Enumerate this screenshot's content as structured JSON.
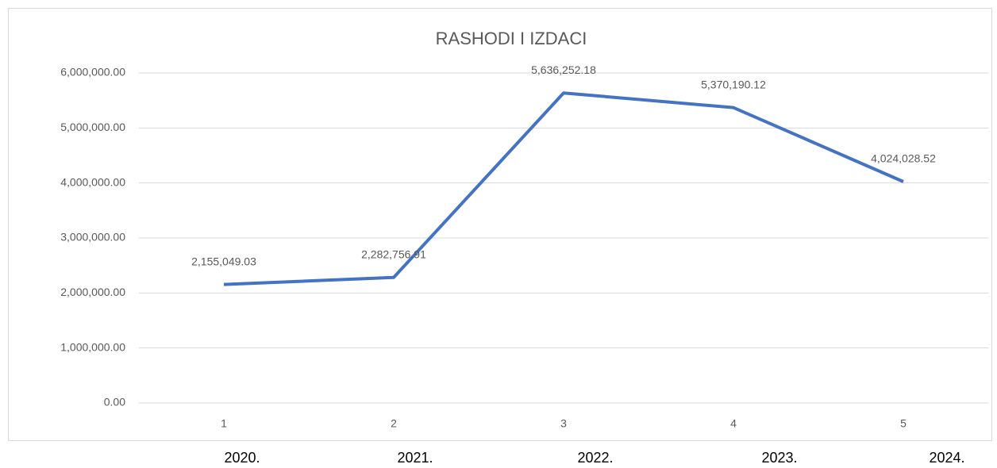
{
  "chart_data": {
    "type": "line",
    "title": "RASHODI I IZDACI",
    "categories": [
      "1",
      "2",
      "3",
      "4",
      "5"
    ],
    "series": [
      {
        "name": "RASHODI I IZDACI",
        "color": "#4472c4",
        "values": [
          2155049.03,
          2282756.91,
          5636252.18,
          5370190.12,
          4024028.52
        ],
        "value_labels": [
          "2,155,049.03",
          "2,282,756.91",
          "5,636,252.18",
          "5,370,190.12",
          "4,024,028.52"
        ]
      }
    ],
    "ylim": [
      0,
      6000000
    ],
    "yticks": [
      {
        "value": 0,
        "label": "0.00"
      },
      {
        "value": 1000000,
        "label": "1,000,000.00"
      },
      {
        "value": 2000000,
        "label": "2,000,000.00"
      },
      {
        "value": 3000000,
        "label": "3,000,000.00"
      },
      {
        "value": 4000000,
        "label": "4,000,000.00"
      },
      {
        "value": 5000000,
        "label": "5,000,000.00"
      },
      {
        "value": 6000000,
        "label": "6,000,000.00"
      }
    ],
    "grid": true,
    "year_labels": [
      "2020.",
      "2021.",
      "2022.",
      "2023.",
      "2024."
    ]
  }
}
